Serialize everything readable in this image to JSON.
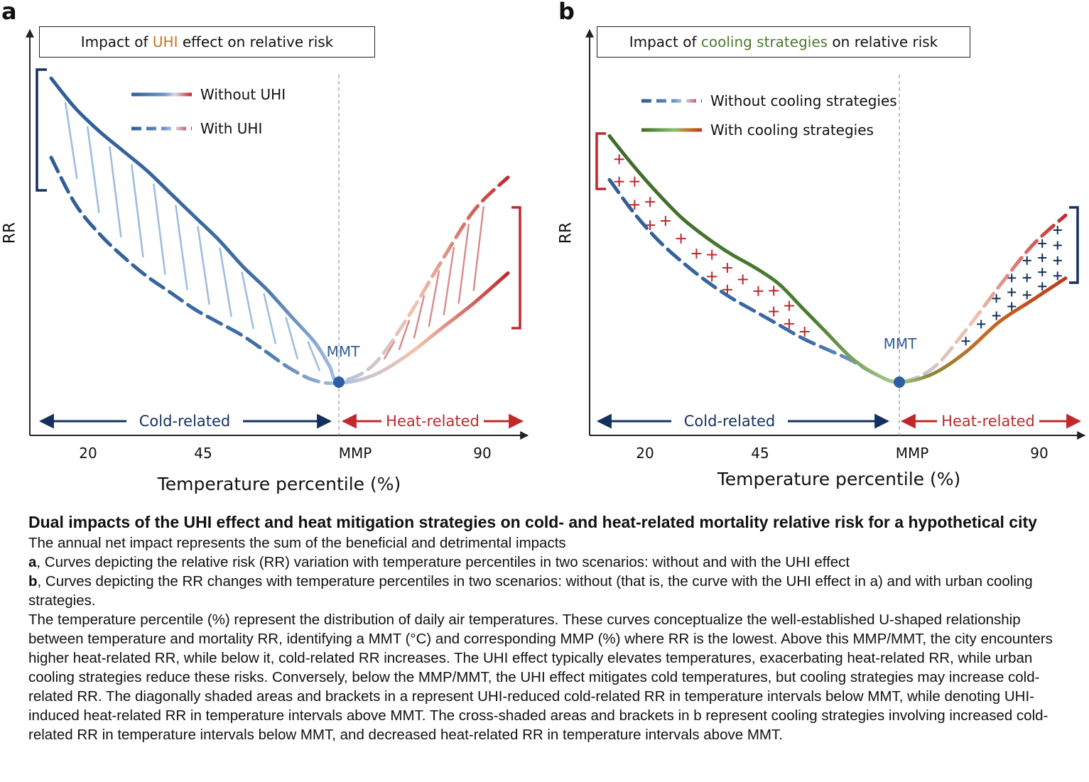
{
  "panel_a": {
    "letter": "a",
    "title_before": "Impact of ",
    "title_highlight": "UHI",
    "title_after": " effect on relative risk"
  },
  "panel_b": {
    "letter": "b",
    "title_before": "Impact of ",
    "title_highlight": "cooling strategies",
    "title_after": " on relative risk"
  },
  "colors": {
    "cold_blue": "#2f5d95",
    "light_blue": "#9fbde0",
    "heat_red": "#c0282c",
    "light_peach": "#f2c7b2",
    "green_dark": "#3f6b2a",
    "green_light": "#a8d08a",
    "orange_red": "#c45a1e",
    "navy": "#14305e",
    "mmt_dot": "#2e5ea6"
  },
  "chart_data": [
    {
      "type": "line",
      "panel": "a",
      "title": "Impact of UHI effect on relative risk",
      "xlabel": "Temperature percentile (%)",
      "ylabel": "RR",
      "x_ticks": [
        "20",
        "45",
        "MMP",
        "90"
      ],
      "mmt_label": "MMT",
      "cold_label": "Cold-related",
      "heat_label": "Heat-related",
      "legend": [
        {
          "label": "Without UHI",
          "style": "solid"
        },
        {
          "label": "With UHI",
          "style": "dashed"
        }
      ],
      "legend_position": "top-left",
      "series": [
        {
          "name": "Without UHI",
          "style": "solid",
          "points": [
            [
              10,
              9.2
            ],
            [
              15,
              8.3
            ],
            [
              20,
              7.6
            ],
            [
              25,
              7.0
            ],
            [
              30,
              6.4
            ],
            [
              35,
              5.7
            ],
            [
              40,
              5.0
            ],
            [
              45,
              4.3
            ],
            [
              50,
              3.5
            ],
            [
              55,
              2.8
            ],
            [
              60,
              2.0
            ],
            [
              65,
              1.2
            ],
            [
              68,
              0.5
            ],
            [
              70,
              0
            ],
            [
              75,
              0.2
            ],
            [
              80,
              0.8
            ],
            [
              85,
              1.6
            ],
            [
              90,
              2.4
            ],
            [
              95,
              3.3
            ]
          ]
        },
        {
          "name": "With UHI",
          "style": "dashed",
          "points": [
            [
              10,
              6.8
            ],
            [
              15,
              5.4
            ],
            [
              20,
              4.5
            ],
            [
              25,
              3.8
            ],
            [
              30,
              3.2
            ],
            [
              35,
              2.7
            ],
            [
              40,
              2.2
            ],
            [
              45,
              1.8
            ],
            [
              50,
              1.4
            ],
            [
              55,
              0.9
            ],
            [
              60,
              0.4
            ],
            [
              65,
              0.05
            ],
            [
              70,
              0
            ],
            [
              75,
              0.5
            ],
            [
              80,
              1.9
            ],
            [
              85,
              3.6
            ],
            [
              90,
              5.2
            ],
            [
              95,
              6.2
            ]
          ]
        }
      ]
    },
    {
      "type": "line",
      "panel": "b",
      "title": "Impact of cooling strategies on relative risk",
      "xlabel": "Temperature percentile (%)",
      "ylabel": "RR",
      "x_ticks": [
        "20",
        "45",
        "MMP",
        "90"
      ],
      "mmt_label": "MMT",
      "cold_label": "Cold-related",
      "heat_label": "Heat-related",
      "legend": [
        {
          "label": "Without cooling strategies",
          "style": "dashed"
        },
        {
          "label": "With cooling strategies",
          "style": "solid"
        }
      ],
      "legend_position": "top-left",
      "series": [
        {
          "name": "Without cooling strategies",
          "style": "dashed",
          "points": [
            [
              10,
              7.4
            ],
            [
              15,
              6.2
            ],
            [
              20,
              5.2
            ],
            [
              25,
              4.4
            ],
            [
              30,
              3.7
            ],
            [
              35,
              3.1
            ],
            [
              40,
              2.6
            ],
            [
              45,
              2.1
            ],
            [
              50,
              1.6
            ],
            [
              55,
              1.2
            ],
            [
              60,
              0.8
            ],
            [
              65,
              0.3
            ],
            [
              70,
              0
            ],
            [
              75,
              0.5
            ],
            [
              80,
              1.9
            ],
            [
              85,
              3.5
            ],
            [
              90,
              5.0
            ],
            [
              95,
              6.1
            ]
          ]
        },
        {
          "name": "With cooling strategies",
          "style": "solid",
          "points": [
            [
              10,
              9.0
            ],
            [
              15,
              7.9
            ],
            [
              20,
              6.9
            ],
            [
              25,
              6.0
            ],
            [
              30,
              5.3
            ],
            [
              35,
              4.7
            ],
            [
              40,
              4.2
            ],
            [
              45,
              3.6
            ],
            [
              50,
              2.7
            ],
            [
              55,
              1.8
            ],
            [
              60,
              0.9
            ],
            [
              65,
              0.3
            ],
            [
              70,
              0
            ],
            [
              75,
              0.3
            ],
            [
              80,
              1.1
            ],
            [
              85,
              2.2
            ],
            [
              90,
              3.0
            ],
            [
              95,
              3.8
            ]
          ]
        }
      ]
    }
  ],
  "caption": {
    "title": "Dual impacts of the UHI effect and heat mitigation strategies on cold- and heat-related mortality relative risk for a hypothetical city",
    "line1": "The annual net impact represents the sum of the beneficial and detrimental impacts",
    "a_label": "a",
    "a_text": ", Curves depicting the relative risk (RR) variation with temperature percentiles in two scenarios: without and with the UHI effect",
    "b_label": "b",
    "b_text": ", Curves depicting the RR changes with temperature percentiles in two scenarios: without (that is, the curve with the UHI effect in a) and with urban cooling strategies.",
    "body": "The temperature percentile (%) represent the distribution of daily air temperatures. These curves conceptualize the well-established U-shaped relationship between temperature and mortality RR, identifying a MMT (°C) and corresponding MMP (%) where RR is the lowest. Above this MMP/MMT, the city encounters higher heat-related RR, while below it, cold-related RR increases. The UHI effect typically elevates temperatures, exacerbating heat-related RR, while urban cooling strategies reduce these risks. Conversely, below the MMP/MMT, the UHI effect mitigates cold temperatures, but cooling strategies may increase cold-related RR. The diagonally shaded areas and brackets in a represent UHI-reduced cold-related RR in temperature intervals below MMT, while denoting UHI-induced heat-related RR in temperature intervals above MMT. The cross-shaded areas and brackets in b represent cooling strategies involving increased cold-related RR in temperature intervals below MMT, and decreased heat-related RR in temperature intervals above MMT."
  }
}
